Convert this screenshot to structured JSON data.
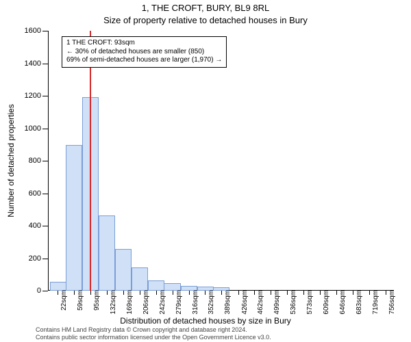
{
  "title_main": "1, THE CROFT, BURY, BL9 8RL",
  "title_sub": "Size of property relative to detached houses in Bury",
  "ylabel": "Number of detached properties",
  "xlabel": "Distribution of detached houses by size in Bury",
  "footer_line1": "Contains HM Land Registry data © Crown copyright and database right 2024.",
  "footer_line2": "Contains public sector information licensed under the Open Government Licence v3.0.",
  "chart": {
    "type": "histogram",
    "background_color": "#ffffff",
    "bar_fill": "#cfe0f7",
    "bar_border": "#7a9ed6",
    "marker_color": "#d62728",
    "marker_width": 2,
    "marker_x_sqm": 93,
    "x_min_sqm": 0,
    "x_max_sqm": 775,
    "ylim": [
      0,
      1600
    ],
    "ytick_step": 200,
    "x_tick_labels": [
      "22sqm",
      "59sqm",
      "95sqm",
      "132sqm",
      "169sqm",
      "206sqm",
      "242sqm",
      "279sqm",
      "316sqm",
      "352sqm",
      "389sqm",
      "426sqm",
      "462sqm",
      "499sqm",
      "536sqm",
      "573sqm",
      "609sqm",
      "646sqm",
      "683sqm",
      "719sqm",
      "756sqm"
    ],
    "x_tick_sqm": [
      22,
      59,
      95,
      132,
      169,
      206,
      242,
      279,
      316,
      352,
      389,
      426,
      462,
      499,
      536,
      573,
      609,
      646,
      683,
      719,
      756
    ],
    "bin_width_sqm": 37,
    "bars_sqm_start": [
      4,
      40,
      77,
      114,
      150,
      187,
      224,
      260,
      297,
      334,
      370
    ],
    "bar_values": [
      55,
      895,
      1190,
      465,
      255,
      145,
      65,
      45,
      30,
      25,
      20
    ],
    "title_fontsize": 13,
    "label_fontsize": 12,
    "tick_fontsize": 10
  },
  "annotation": {
    "line1": "1 THE CROFT: 93sqm",
    "line2": "← 30% of detached houses are smaller (850)",
    "line3": "69% of semi-detached houses are larger (1,970) →"
  }
}
